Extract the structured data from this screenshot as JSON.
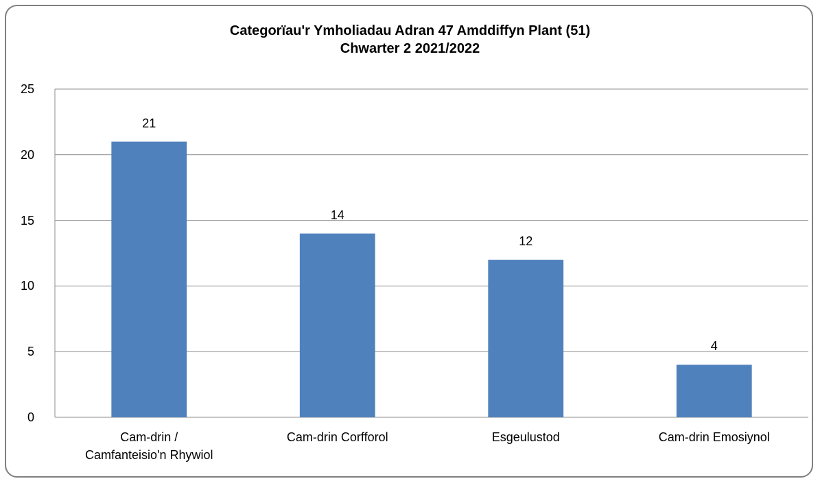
{
  "chart_data": {
    "type": "bar",
    "title": "Categorïau'r Ymholiadau Adran 47 Amddiffyn Plant (51)\nChwarter 2 2021/2022",
    "categories": [
      "Cam-drin /\nCamfanteisio'n Rhywiol",
      "Cam-drin Corfforol",
      "Esgeulustod",
      "Cam-drin Emosiynol"
    ],
    "values": [
      21,
      14,
      12,
      4
    ],
    "color": "#4f81bd",
    "ylim": [
      0,
      25
    ],
    "yticks": [
      0,
      5,
      10,
      15,
      20,
      25
    ],
    "grid": true
  }
}
